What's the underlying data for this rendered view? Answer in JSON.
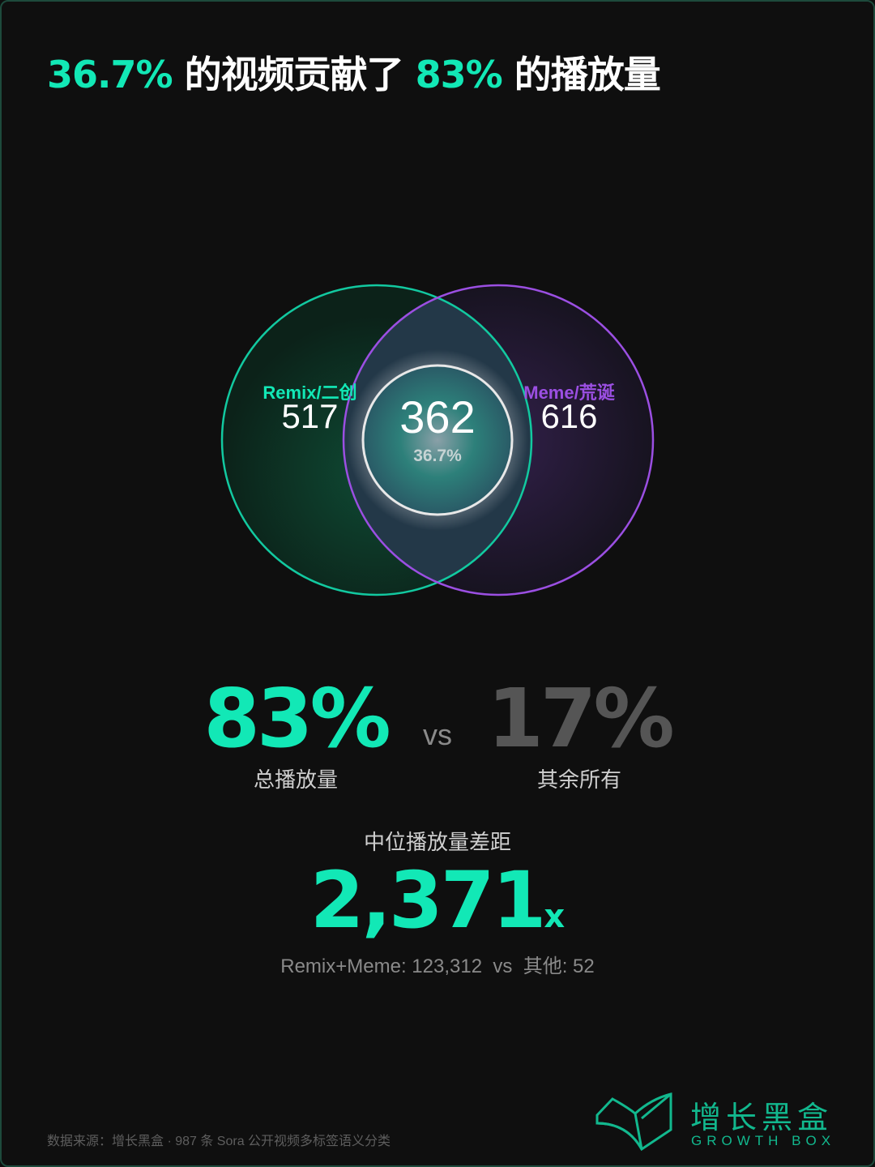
{
  "title": {
    "part1": "36.7%",
    "part2": " 的视频贡献了 ",
    "part3": "83%",
    "part4": " 的播放量"
  },
  "venn": {
    "left": {
      "label": "Remix/二创",
      "count": "517",
      "color": "#12e8b6"
    },
    "right": {
      "label": "Meme/荒诞",
      "count": "616",
      "color": "#9b4fe2"
    },
    "overlap": {
      "count": "362",
      "percent": "36.7%"
    }
  },
  "comparison": {
    "left": {
      "value": "83%",
      "label": "总播放量",
      "color": "#12e8b6"
    },
    "vs": "vs",
    "right": {
      "value": "17%",
      "label": "其余所有",
      "color": "#555555"
    }
  },
  "median": {
    "label": "中位播放量差距",
    "value": "2,371",
    "suffix": "x",
    "detail": "Remix+Meme: 123,312  vs  其他: 52"
  },
  "footer": {
    "source": "数据来源：增长黑盒 · 987 条 Sora 公开视频多标签语义分类"
  },
  "logo": {
    "cn": "增长黑盒",
    "en": "GROWTH BOX",
    "color": "#12b88e"
  }
}
